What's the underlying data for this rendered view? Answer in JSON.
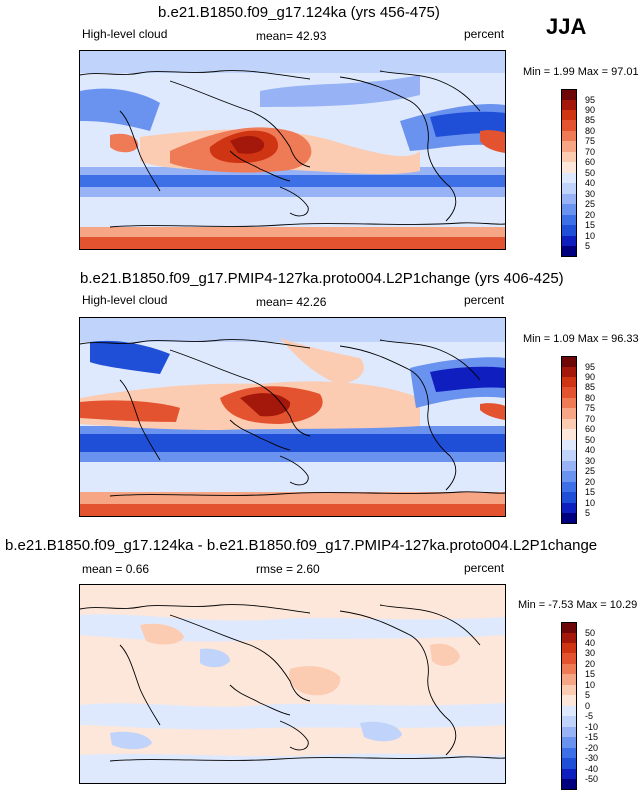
{
  "season": "JJA",
  "colors": {
    "cloud_levels": [
      "#00007f",
      "#0f1fbf",
      "#1f4fd7",
      "#3d70e6",
      "#6a92ef",
      "#97b3f5",
      "#c0d3fa",
      "#dfe9fd",
      "#fde6da",
      "#fbcbb2",
      "#f6a585",
      "#ef7a56",
      "#e4532f",
      "#cf3512",
      "#a3180a",
      "#6e0707"
    ],
    "diff_levels": [
      "#00007f",
      "#0f1fbf",
      "#1f4fd7",
      "#3d70e6",
      "#6a92ef",
      "#97b3f5",
      "#c0d3fa",
      "#dfe9fd",
      "#fde6da",
      "#fbcbb2",
      "#f6a585",
      "#ef7a56",
      "#e4532f",
      "#cf3512",
      "#a3180a",
      "#6e0707"
    ]
  },
  "panels": [
    {
      "title": "b.e21.B1850.f09_g17.124ka (yrs 456-475)",
      "variable": "High-level cloud",
      "mean_label": "mean=",
      "mean_value": "42.93",
      "units": "percent",
      "min_label": "Min =",
      "min_value": "1.99",
      "max_label": "Max =",
      "max_value": "97.01",
      "ticks": [
        "95",
        "90",
        "85",
        "80",
        "75",
        "70",
        "60",
        "50",
        "40",
        "30",
        "25",
        "20",
        "15",
        "10",
        "5"
      ]
    },
    {
      "title": "b.e21.B1850.f09_g17.PMIP4-127ka.proto004.L2P1change (yrs 406-425)",
      "variable": "High-level cloud",
      "mean_label": "mean=",
      "mean_value": "42.26",
      "units": "percent",
      "min_label": "Min =",
      "min_value": "1.09",
      "max_label": "Max =",
      "max_value": "96.33",
      "ticks": [
        "95",
        "90",
        "85",
        "80",
        "75",
        "70",
        "60",
        "50",
        "40",
        "30",
        "25",
        "20",
        "15",
        "10",
        "5"
      ]
    },
    {
      "title": "b.e21.B1850.f09_g17.124ka - b.e21.B1850.f09_g17.PMIP4-127ka.proto004.L2P1change",
      "mean_label": "mean =",
      "mean_value": "0.66",
      "rmse_label": "rmse =",
      "rmse_value": "2.60",
      "units": "percent",
      "min_label": "Min =",
      "min_value": "-7.53",
      "max_label": "Max =",
      "max_value": "10.29",
      "ticks": [
        "50",
        "40",
        "30",
        "20",
        "15",
        "10",
        "5",
        "0",
        "-5",
        "-10",
        "-15",
        "-20",
        "-30",
        "-40",
        "-50"
      ]
    }
  ]
}
